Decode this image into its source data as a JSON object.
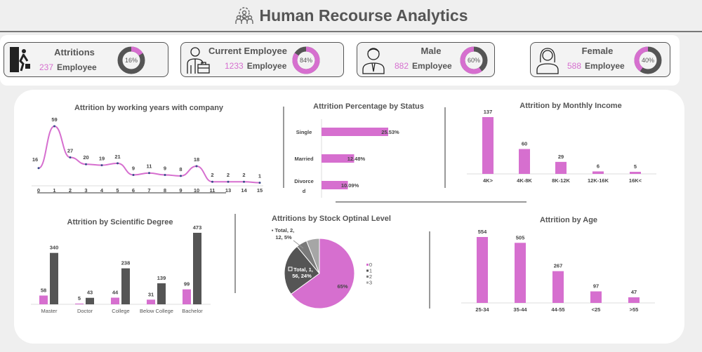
{
  "header": {
    "title": "Human Recourse Analytics",
    "icon": "team-gear-icon"
  },
  "kpis": [
    {
      "title": "Attritions",
      "value": "237",
      "unit": "Employee",
      "percent": 16,
      "percent_label": "16%",
      "icon": "exit-door-icon"
    },
    {
      "title": "Current Employee",
      "value": "1233",
      "unit": "Employee",
      "percent": 84,
      "percent_label": "84%",
      "icon": "employee-briefcase-icon"
    },
    {
      "title": "Male",
      "value": "882",
      "unit": "Employee",
      "percent": 60,
      "percent_label": "60%",
      "icon": "male-user-icon"
    },
    {
      "title": "Female",
      "value": "588",
      "unit": "Employee",
      "percent": 40,
      "percent_label": "40%",
      "icon": "female-user-icon"
    }
  ],
  "colors": {
    "accent": "#d66fcf",
    "dark": "#555555",
    "gray": "#a6a6a6"
  },
  "chart_data": [
    {
      "type": "line",
      "title": "Attrition by working years with company",
      "categories": [
        "0",
        "1",
        "2",
        "3",
        "4",
        "5",
        "6",
        "7",
        "8",
        "9",
        "10",
        "11",
        "13",
        "14",
        "15"
      ],
      "values": [
        16,
        59,
        27,
        20,
        19,
        21,
        9,
        11,
        9,
        8,
        18,
        2,
        2,
        2,
        1
      ]
    },
    {
      "type": "bar",
      "orientation": "horizontal",
      "title": "Attrition Percentage by Status",
      "categories": [
        "Single",
        "Married",
        "Divorced"
      ],
      "values": [
        25.53,
        12.48,
        10.09
      ],
      "labels": [
        "25.53%",
        "12.48%",
        "10.09%"
      ]
    },
    {
      "type": "bar",
      "title": "Attrition by Monthly Income",
      "categories": [
        "4K>",
        "4K-8K",
        "8K-12K",
        "12K-16K",
        "16K<"
      ],
      "values": [
        137,
        60,
        29,
        6,
        5
      ]
    },
    {
      "type": "bar",
      "title": "Attrition by Scientific Degree",
      "categories": [
        "Master",
        "Doctor",
        "College",
        "Below College",
        "Bachelor"
      ],
      "series": [
        {
          "values": [
            58,
            5,
            44,
            31,
            99
          ]
        },
        {
          "values": [
            340,
            43,
            238,
            139,
            473
          ]
        }
      ]
    },
    {
      "type": "pie",
      "title": "Attritions by Stock Optinal Level",
      "categories": [
        "0",
        "1",
        "2",
        "3"
      ],
      "values": [
        65,
        24,
        5,
        6
      ],
      "labels": [
        "65%",
        "Total, 1, 56, 24%",
        "Total, 2, 12, 5%",
        ""
      ],
      "legend": "right"
    },
    {
      "type": "bar",
      "title": "Attrition by Age",
      "categories": [
        "25-34",
        "35-44",
        "44-55",
        "<25",
        ">55"
      ],
      "values": [
        554,
        505,
        267,
        97,
        47
      ]
    }
  ]
}
